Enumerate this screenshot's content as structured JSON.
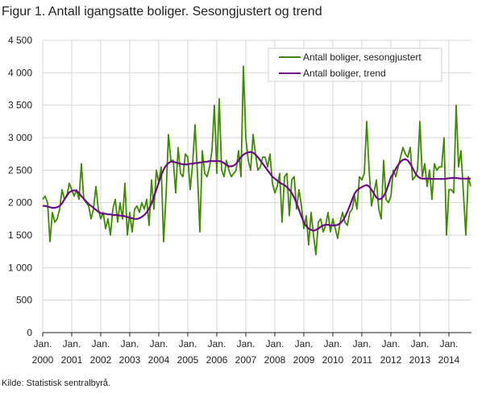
{
  "title": "Figur 1. Antall igangsatte boliger. Sesongjustert og trend",
  "source": "Kilde: Statistisk sentralbyrå.",
  "chart_data": {
    "type": "line",
    "title": "Figur 1. Antall igangsatte boliger. Sesongjustert og trend",
    "x_start": "2000-01",
    "x_frequency": "monthly",
    "ylim": [
      0,
      4500
    ],
    "y_ticks": [
      0,
      500,
      1000,
      1500,
      2000,
      2500,
      3000,
      3500,
      4000,
      4500
    ],
    "y_tick_labels": [
      "0",
      "500",
      "1 000",
      "1 500",
      "2 000",
      "2 500",
      "3 000",
      "3 500",
      "4 000",
      "4 500"
    ],
    "x_tick_labels": [
      [
        "Jan.",
        "2000"
      ],
      [
        "Jan.",
        "2001"
      ],
      [
        "Jan.",
        "2002"
      ],
      [
        "Jan.",
        "2003"
      ],
      [
        "Jan.",
        "2004"
      ],
      [
        "Jan.",
        "2005"
      ],
      [
        "Jan.",
        "2006"
      ],
      [
        "Jan.",
        "2007"
      ],
      [
        "Jan.",
        "2008"
      ],
      [
        "Jan.",
        "2009"
      ],
      [
        "Jan.",
        "2010"
      ],
      [
        "Jan.",
        "2011"
      ],
      [
        "Jan.",
        "2012"
      ],
      [
        "Jan.",
        "2013"
      ],
      [
        "Jan.",
        "2014"
      ]
    ],
    "grid": true,
    "legend_position": "top-right",
    "series": [
      {
        "name": "Antall boliger, sesongjustert",
        "color": "#3e8a00",
        "values": [
          2050,
          2100,
          2000,
          1400,
          1850,
          1700,
          1750,
          1900,
          2200,
          2050,
          2100,
          2300,
          2200,
          2100,
          2200,
          2050,
          2600,
          2050,
          2000,
          1950,
          1750,
          1900,
          2250,
          1900,
          1750,
          1850,
          1600,
          1750,
          1500,
          1900,
          2050,
          1700,
          2000,
          1750,
          2300,
          1500,
          1850,
          1550,
          1900,
          1950,
          1850,
          2000,
          1900,
          2050,
          1650,
          2350,
          1900,
          2500,
          2300,
          2550,
          1400,
          2100,
          3050,
          2650,
          2650,
          2150,
          2850,
          2450,
          2400,
          2750,
          2700,
          2200,
          2600,
          3200,
          2450,
          1550,
          2800,
          2450,
          2400,
          2550,
          2800,
          3500,
          2450,
          3600,
          2500,
          2400,
          2650,
          2500,
          2400,
          2450,
          2500,
          2800,
          2400,
          4100,
          3000,
          2650,
          2500,
          3050,
          2750,
          2500,
          2550,
          2700,
          2700,
          2550,
          2750,
          2300,
          2150,
          2250,
          2450,
          1700,
          2400,
          2450,
          1800,
          2350,
          2400,
          1900,
          2200,
          1950,
          1600,
          1800,
          1350,
          1850,
          1500,
          1200,
          1700,
          1750,
          1550,
          1650,
          1850,
          1550,
          1750,
          1600,
          1450,
          1700,
          1850,
          1700,
          1650,
          1850,
          1900,
          2100,
          1900,
          2400,
          2350,
          2450,
          3250,
          2500,
          1950,
          2150,
          2350,
          1900,
          1750,
          2650,
          2050,
          2000,
          2100,
          2500,
          2400,
          2550,
          2700,
          2850,
          2750,
          2700,
          2850,
          2350,
          2400,
          2500,
          3250,
          2400,
          2600,
          2250,
          2500,
          2050,
          2600,
          2500,
          2550,
          2550,
          3000,
          1500,
          2200,
          2200,
          2150,
          3500,
          2550,
          2800,
          2150,
          1500,
          2400,
          2250
        ]
      },
      {
        "name": "Antall boliger, trend",
        "color": "#6e0c8a",
        "values": [
          1950,
          1950,
          1940,
          1930,
          1920,
          1920,
          1930,
          1950,
          1990,
          2050,
          2110,
          2160,
          2180,
          2190,
          2180,
          2150,
          2100,
          2060,
          2020,
          1980,
          1950,
          1920,
          1890,
          1860,
          1840,
          1830,
          1830,
          1820,
          1820,
          1810,
          1810,
          1810,
          1800,
          1800,
          1790,
          1780,
          1770,
          1760,
          1750,
          1750,
          1760,
          1780,
          1810,
          1850,
          1910,
          1990,
          2090,
          2200,
          2310,
          2420,
          2510,
          2570,
          2610,
          2630,
          2630,
          2620,
          2610,
          2600,
          2590,
          2590,
          2590,
          2600,
          2600,
          2610,
          2610,
          2620,
          2620,
          2630,
          2630,
          2640,
          2640,
          2640,
          2640,
          2640,
          2630,
          2610,
          2580,
          2560,
          2560,
          2570,
          2600,
          2650,
          2700,
          2740,
          2760,
          2775,
          2780,
          2770,
          2740,
          2700,
          2650,
          2600,
          2550,
          2500,
          2450,
          2400,
          2370,
          2340,
          2310,
          2290,
          2270,
          2240,
          2200,
          2150,
          2080,
          1990,
          1890,
          1790,
          1700,
          1640,
          1600,
          1580,
          1570,
          1580,
          1600,
          1630,
          1650,
          1660,
          1660,
          1650,
          1650,
          1650,
          1660,
          1680,
          1720,
          1780,
          1860,
          1950,
          2050,
          2140,
          2190,
          2220,
          2240,
          2260,
          2270,
          2250,
          2200,
          2140,
          2080,
          2050,
          2060,
          2100,
          2170,
          2280,
          2390,
          2450,
          2520,
          2580,
          2630,
          2660,
          2670,
          2650,
          2600,
          2530,
          2460,
          2410,
          2380,
          2370,
          2370,
          2370,
          2370,
          2365,
          2365,
          2365,
          2365,
          2365,
          2365,
          2370,
          2375,
          2380,
          2380,
          2380,
          2375,
          2370,
          2370,
          2370,
          2370,
          2370
        ]
      }
    ]
  }
}
